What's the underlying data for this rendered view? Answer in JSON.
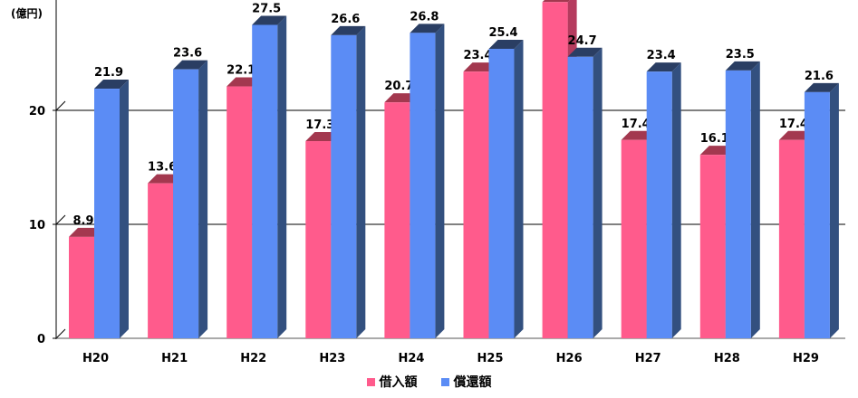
{
  "chart_data": {
    "type": "bar",
    "unit_label": "(億円)",
    "categories": [
      "H20",
      "H21",
      "H22",
      "H23",
      "H24",
      "H25",
      "H26",
      "H27",
      "H28",
      "H29"
    ],
    "series": [
      {
        "name": "借入額",
        "values": [
          8.9,
          13.6,
          22.1,
          17.3,
          20.7,
          23.4,
          29.5,
          17.4,
          16.1,
          17.4
        ]
      },
      {
        "name": "償還額",
        "values": [
          21.9,
          23.6,
          27.5,
          26.6,
          26.8,
          25.4,
          24.7,
          23.4,
          23.5,
          21.6
        ]
      }
    ],
    "ylim": [
      0,
      30
    ],
    "yticks": [
      0,
      10,
      20
    ],
    "grid": true,
    "legend_position": "bottom",
    "colors": {
      "借入額": {
        "front": "#ff5b8c",
        "top": "#a3384f",
        "side": "#b53b5e"
      },
      "償還額": {
        "front": "#5b8cf5",
        "top": "#2a3e63",
        "side": "#33507f"
      }
    }
  }
}
